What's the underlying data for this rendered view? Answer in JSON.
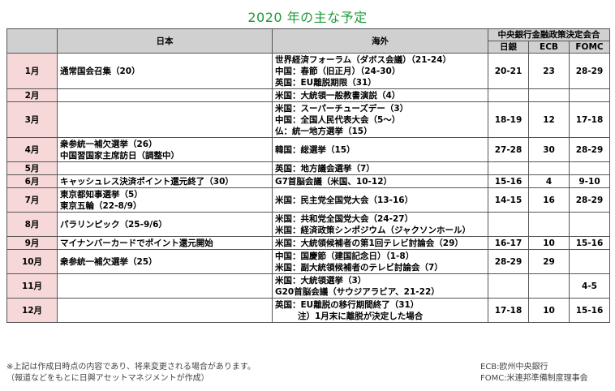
{
  "title": "2020 年の主な予定",
  "headers": {
    "japan": "日本",
    "overseas": "海外",
    "central_bank": "中央銀行金融政策決定会合",
    "boj": "日銀",
    "ecb": "ECB",
    "fomc": "FOMC"
  },
  "rows": [
    {
      "month": "1月",
      "japan": [
        "通常国会召集（20）"
      ],
      "overseas": [
        "世界経済フォーラム（ダボス会議）（21-24）",
        "中国：春節（旧正月）（24-30）",
        "英国：EU離脱期限（31）"
      ],
      "boj": "20-21",
      "ecb": "23",
      "fomc": "28-29"
    },
    {
      "month": "2月",
      "japan": [],
      "overseas": [
        "米国：大統領一般教書演説（4）"
      ],
      "boj": "",
      "ecb": "",
      "fomc": ""
    },
    {
      "month": "3月",
      "japan": [],
      "overseas": [
        "米国：スーパーチューズデー（3）",
        "中国：全国人民代表大会（5～）",
        "仏：統一地方選挙（15）"
      ],
      "boj": "18-19",
      "ecb": "12",
      "fomc": "17-18"
    },
    {
      "month": "4月",
      "japan": [
        "衆参統一補欠選挙（26）",
        "中国習国家主席訪日（調整中）"
      ],
      "overseas": [
        "韓国：総選挙（15）"
      ],
      "boj": "27-28",
      "ecb": "30",
      "fomc": "28-29"
    },
    {
      "month": "5月",
      "japan": [],
      "overseas": [
        "英国：地方議会選挙（7）"
      ],
      "boj": "",
      "ecb": "",
      "fomc": ""
    },
    {
      "month": "6月",
      "japan": [
        "キャッシュレス決済ポイント還元終了（30）"
      ],
      "overseas": [
        "G7首脳会議（米国、10-12）"
      ],
      "boj": "15-16",
      "ecb": "4",
      "fomc": "9-10"
    },
    {
      "month": "7月",
      "japan": [
        "東京都知事選挙（5）",
        "東京五輪（22-8/9）"
      ],
      "overseas": [
        "米国：民主党全国党大会（13-16）"
      ],
      "boj": "14-15",
      "ecb": "16",
      "fomc": "28-29"
    },
    {
      "month": "8月",
      "japan": [
        "パラリンピック（25-9/6）"
      ],
      "overseas": [
        "米国：共和党全国党大会（24-27）",
        "米国：経済政策シンポジウム（ジャクソンホール）"
      ],
      "boj": "",
      "ecb": "",
      "fomc": ""
    },
    {
      "month": "9月",
      "japan": [
        "マイナンバーカードでポイント還元開始"
      ],
      "overseas": [
        "米国：大統領候補者の第1回テレビ討論会（29）"
      ],
      "boj": "16-17",
      "ecb": "10",
      "fomc": "15-16"
    },
    {
      "month": "10月",
      "japan": [
        "衆参統一補欠選挙（25）"
      ],
      "overseas": [
        "中国：国慶節（建国記念日）（1-8）",
        "米国：副大統領候補者のテレビ討論会（7）"
      ],
      "boj": "28-29",
      "ecb": "29",
      "fomc": ""
    },
    {
      "month": "11月",
      "japan": [],
      "overseas": [
        "米国：大統領選挙（3）",
        "G20首脳会議（サウジアラビア、21-22）"
      ],
      "boj": "",
      "ecb": "",
      "fomc": "4-5"
    },
    {
      "month": "12月",
      "japan": [],
      "overseas": [
        "英国：EU離脱の移行期間終了（31）",
        "注）1月末に離脱が決定した場合"
      ],
      "boj": "17-18",
      "ecb": "10",
      "fomc": "15-16"
    }
  ],
  "footnotes": {
    "left1": "※上記は作成日時点の内容であり、将来変更される場合があります。",
    "left2": "（報道などをもとに日興アセットマネジメントが作成）",
    "right1": "ECB:欧州中央銀行",
    "right2": "FOMC:米連邦準備制度理事会"
  }
}
